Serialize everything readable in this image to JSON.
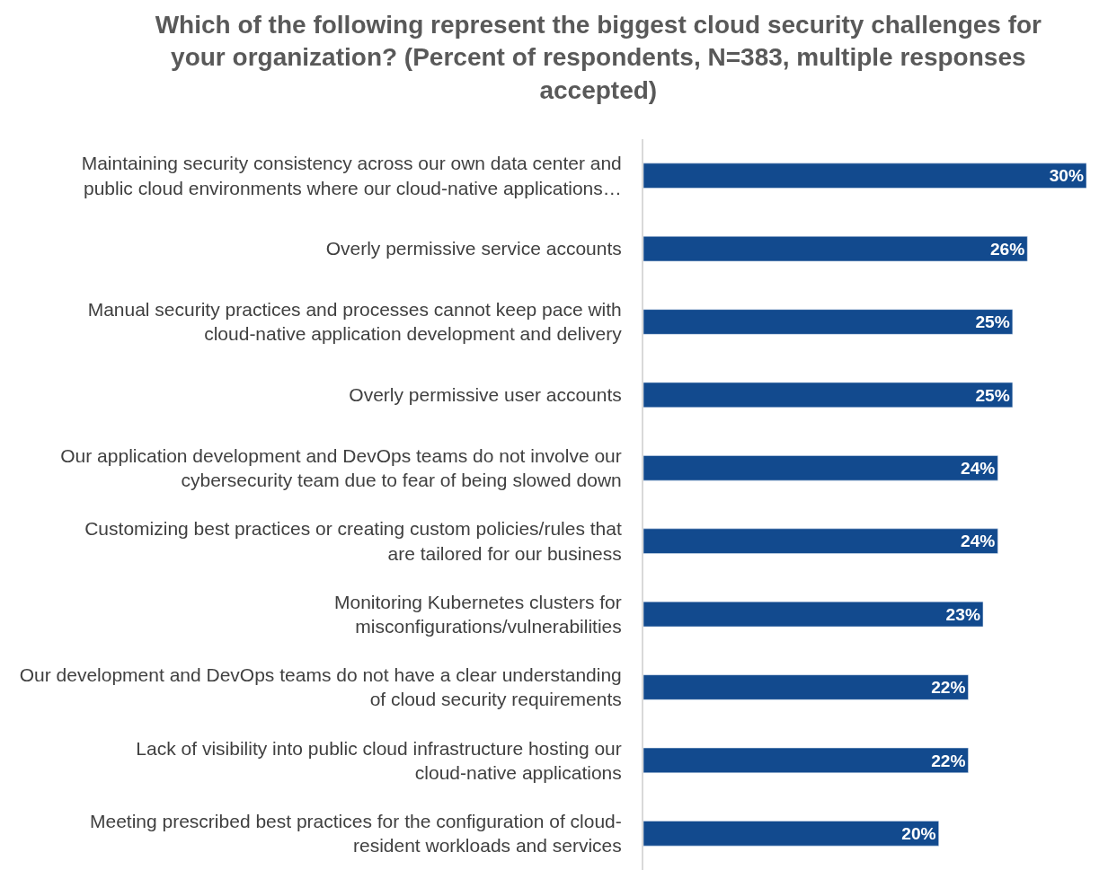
{
  "chart_data": {
    "type": "bar",
    "orientation": "horizontal",
    "title": "Which of the following represent the biggest cloud security challenges for your organization? (Percent of respondents, N=383, multiple responses accepted)",
    "categories": [
      "Maintaining security consistency across our own data center and public cloud environments where our cloud-native applications…",
      "Overly permissive service accounts",
      "Manual security practices and processes cannot keep pace with cloud-native application development and delivery",
      "Overly permissive user accounts",
      "Our application development and DevOps teams do not involve our cybersecurity team due to fear of being slowed down",
      "Customizing best practices or creating custom policies/rules that are tailored for our business",
      "Monitoring Kubernetes clusters for misconfigurations/vulnerabilities",
      "Our development and DevOps teams do not have a clear understanding of cloud security requirements",
      "Lack of visibility into public cloud infrastructure hosting our cloud-native applications",
      "Meeting prescribed best practices for the configuration of cloud-resident workloads and services"
    ],
    "values": [
      30,
      26,
      25,
      25,
      24,
      24,
      23,
      22,
      22,
      20
    ],
    "value_labels": [
      "30%",
      "26%",
      "25%",
      "25%",
      "24%",
      "24%",
      "23%",
      "22%",
      "22%",
      "20%"
    ],
    "color": "#124a8e",
    "xlim": [
      0,
      30
    ],
    "tick_labels": "y",
    "legend": false
  }
}
